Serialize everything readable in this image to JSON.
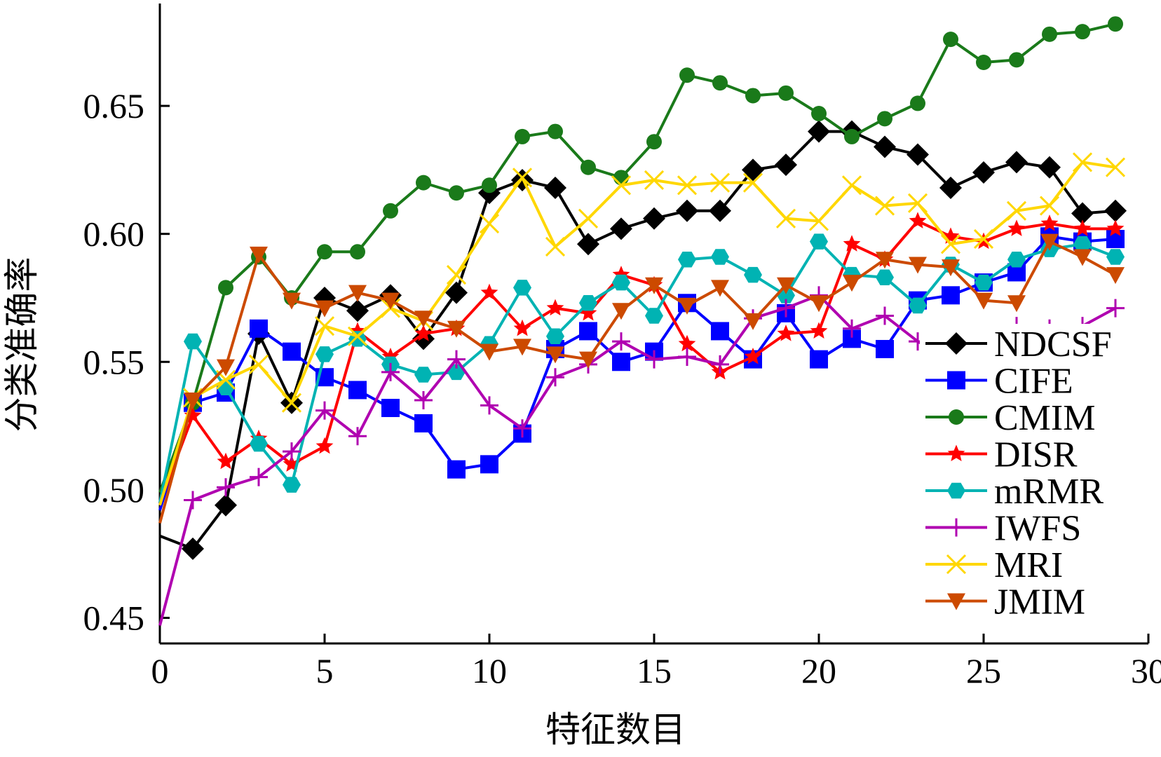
{
  "chart_data": {
    "type": "line",
    "xlabel": "特征数目",
    "ylabel": "分类准确率",
    "xlim": [
      0,
      30
    ],
    "ylim": [
      0.44,
      0.69
    ],
    "xticks": [
      0,
      5,
      10,
      15,
      20,
      25,
      30
    ],
    "xtick_labels": [
      "0",
      "5",
      "10",
      "15",
      "20",
      "25",
      "30"
    ],
    "yticks": [
      0.45,
      0.5,
      0.55,
      0.6,
      0.65
    ],
    "ytick_labels": [
      "0.45",
      "0.50",
      "0.55",
      "0.60",
      "0.65"
    ],
    "grid": false,
    "legend_position": "right",
    "x": [
      0,
      1,
      2,
      3,
      4,
      5,
      6,
      7,
      8,
      9,
      10,
      11,
      12,
      13,
      14,
      15,
      16,
      17,
      18,
      19,
      20,
      21,
      22,
      23,
      24,
      25,
      26,
      27,
      28,
      29
    ],
    "series": [
      {
        "name": "NDCSF",
        "color": "#000000",
        "marker": "diamond",
        "values": [
          0.482,
          0.477,
          0.494,
          0.561,
          0.534,
          0.575,
          0.57,
          0.576,
          0.559,
          0.577,
          0.616,
          0.621,
          0.618,
          0.596,
          0.602,
          0.606,
          0.609,
          0.609,
          0.625,
          0.627,
          0.64,
          0.64,
          0.634,
          0.631,
          0.618,
          0.624,
          0.628,
          0.626,
          0.608,
          0.609
        ]
      },
      {
        "name": "CIFE",
        "color": "#0000ff",
        "marker": "square",
        "values": [
          0.492,
          0.534,
          0.538,
          0.563,
          0.554,
          0.544,
          0.539,
          0.532,
          0.526,
          0.508,
          0.51,
          0.522,
          0.555,
          0.562,
          0.55,
          0.554,
          0.573,
          0.562,
          0.551,
          0.569,
          0.551,
          0.559,
          0.555,
          0.574,
          0.576,
          0.581,
          0.585,
          0.599,
          0.597,
          0.598
        ]
      },
      {
        "name": "CMIM",
        "color": "#1a7a1a",
        "marker": "circle",
        "values": [
          0.499,
          0.534,
          0.579,
          0.591,
          0.575,
          0.593,
          0.593,
          0.609,
          0.62,
          0.616,
          0.619,
          0.638,
          0.64,
          0.626,
          0.622,
          0.636,
          0.662,
          0.659,
          0.654,
          0.655,
          0.647,
          0.638,
          0.645,
          0.651,
          0.676,
          0.667,
          0.668,
          0.678,
          0.679,
          0.682
        ]
      },
      {
        "name": "DISR",
        "color": "#ff0000",
        "marker": "star",
        "values": [
          0.495,
          0.529,
          0.511,
          0.52,
          0.51,
          0.517,
          0.562,
          0.552,
          0.561,
          0.563,
          0.577,
          0.563,
          0.571,
          0.569,
          0.584,
          0.58,
          0.557,
          0.546,
          0.552,
          0.561,
          0.562,
          0.596,
          0.59,
          0.605,
          0.599,
          0.597,
          0.602,
          0.604,
          0.602,
          0.602
        ]
      },
      {
        "name": "mRMR",
        "color": "#00b3b3",
        "marker": "hexagon",
        "values": [
          0.495,
          0.558,
          0.54,
          0.518,
          0.502,
          0.553,
          0.559,
          0.549,
          0.545,
          0.546,
          0.557,
          0.579,
          0.56,
          0.573,
          0.581,
          0.568,
          0.59,
          0.591,
          0.584,
          0.576,
          0.597,
          0.584,
          0.583,
          0.572,
          0.588,
          0.581,
          0.59,
          0.594,
          0.596,
          0.591
        ]
      },
      {
        "name": "IWFS",
        "color": "#b000b0",
        "marker": "plus",
        "values": [
          0.447,
          0.496,
          0.501,
          0.505,
          0.515,
          0.531,
          0.521,
          0.546,
          0.535,
          0.551,
          0.533,
          0.524,
          0.544,
          0.549,
          0.558,
          0.551,
          0.552,
          0.549,
          0.567,
          0.571,
          0.576,
          0.563,
          0.568,
          0.558,
          0.551,
          0.561,
          0.564,
          0.563,
          0.564,
          0.571
        ]
      },
      {
        "name": "MRI",
        "color": "#ffd700",
        "marker": "x",
        "values": [
          0.494,
          0.536,
          0.543,
          0.549,
          0.534,
          0.564,
          0.56,
          0.571,
          0.566,
          0.584,
          0.604,
          0.622,
          0.595,
          0.606,
          0.619,
          0.621,
          0.619,
          0.62,
          0.62,
          0.606,
          0.605,
          0.619,
          0.611,
          0.612,
          0.596,
          0.598,
          0.609,
          0.611,
          0.628,
          0.626
        ]
      },
      {
        "name": "JMIM",
        "color": "#cc4a00",
        "marker": "triangle-down",
        "values": [
          0.487,
          0.535,
          0.548,
          0.592,
          0.574,
          0.571,
          0.577,
          0.574,
          0.567,
          0.563,
          0.554,
          0.556,
          0.553,
          0.551,
          0.57,
          0.58,
          0.572,
          0.579,
          0.566,
          0.58,
          0.573,
          0.581,
          0.59,
          0.588,
          0.587,
          0.574,
          0.573,
          0.597,
          0.591,
          0.584
        ]
      }
    ]
  }
}
